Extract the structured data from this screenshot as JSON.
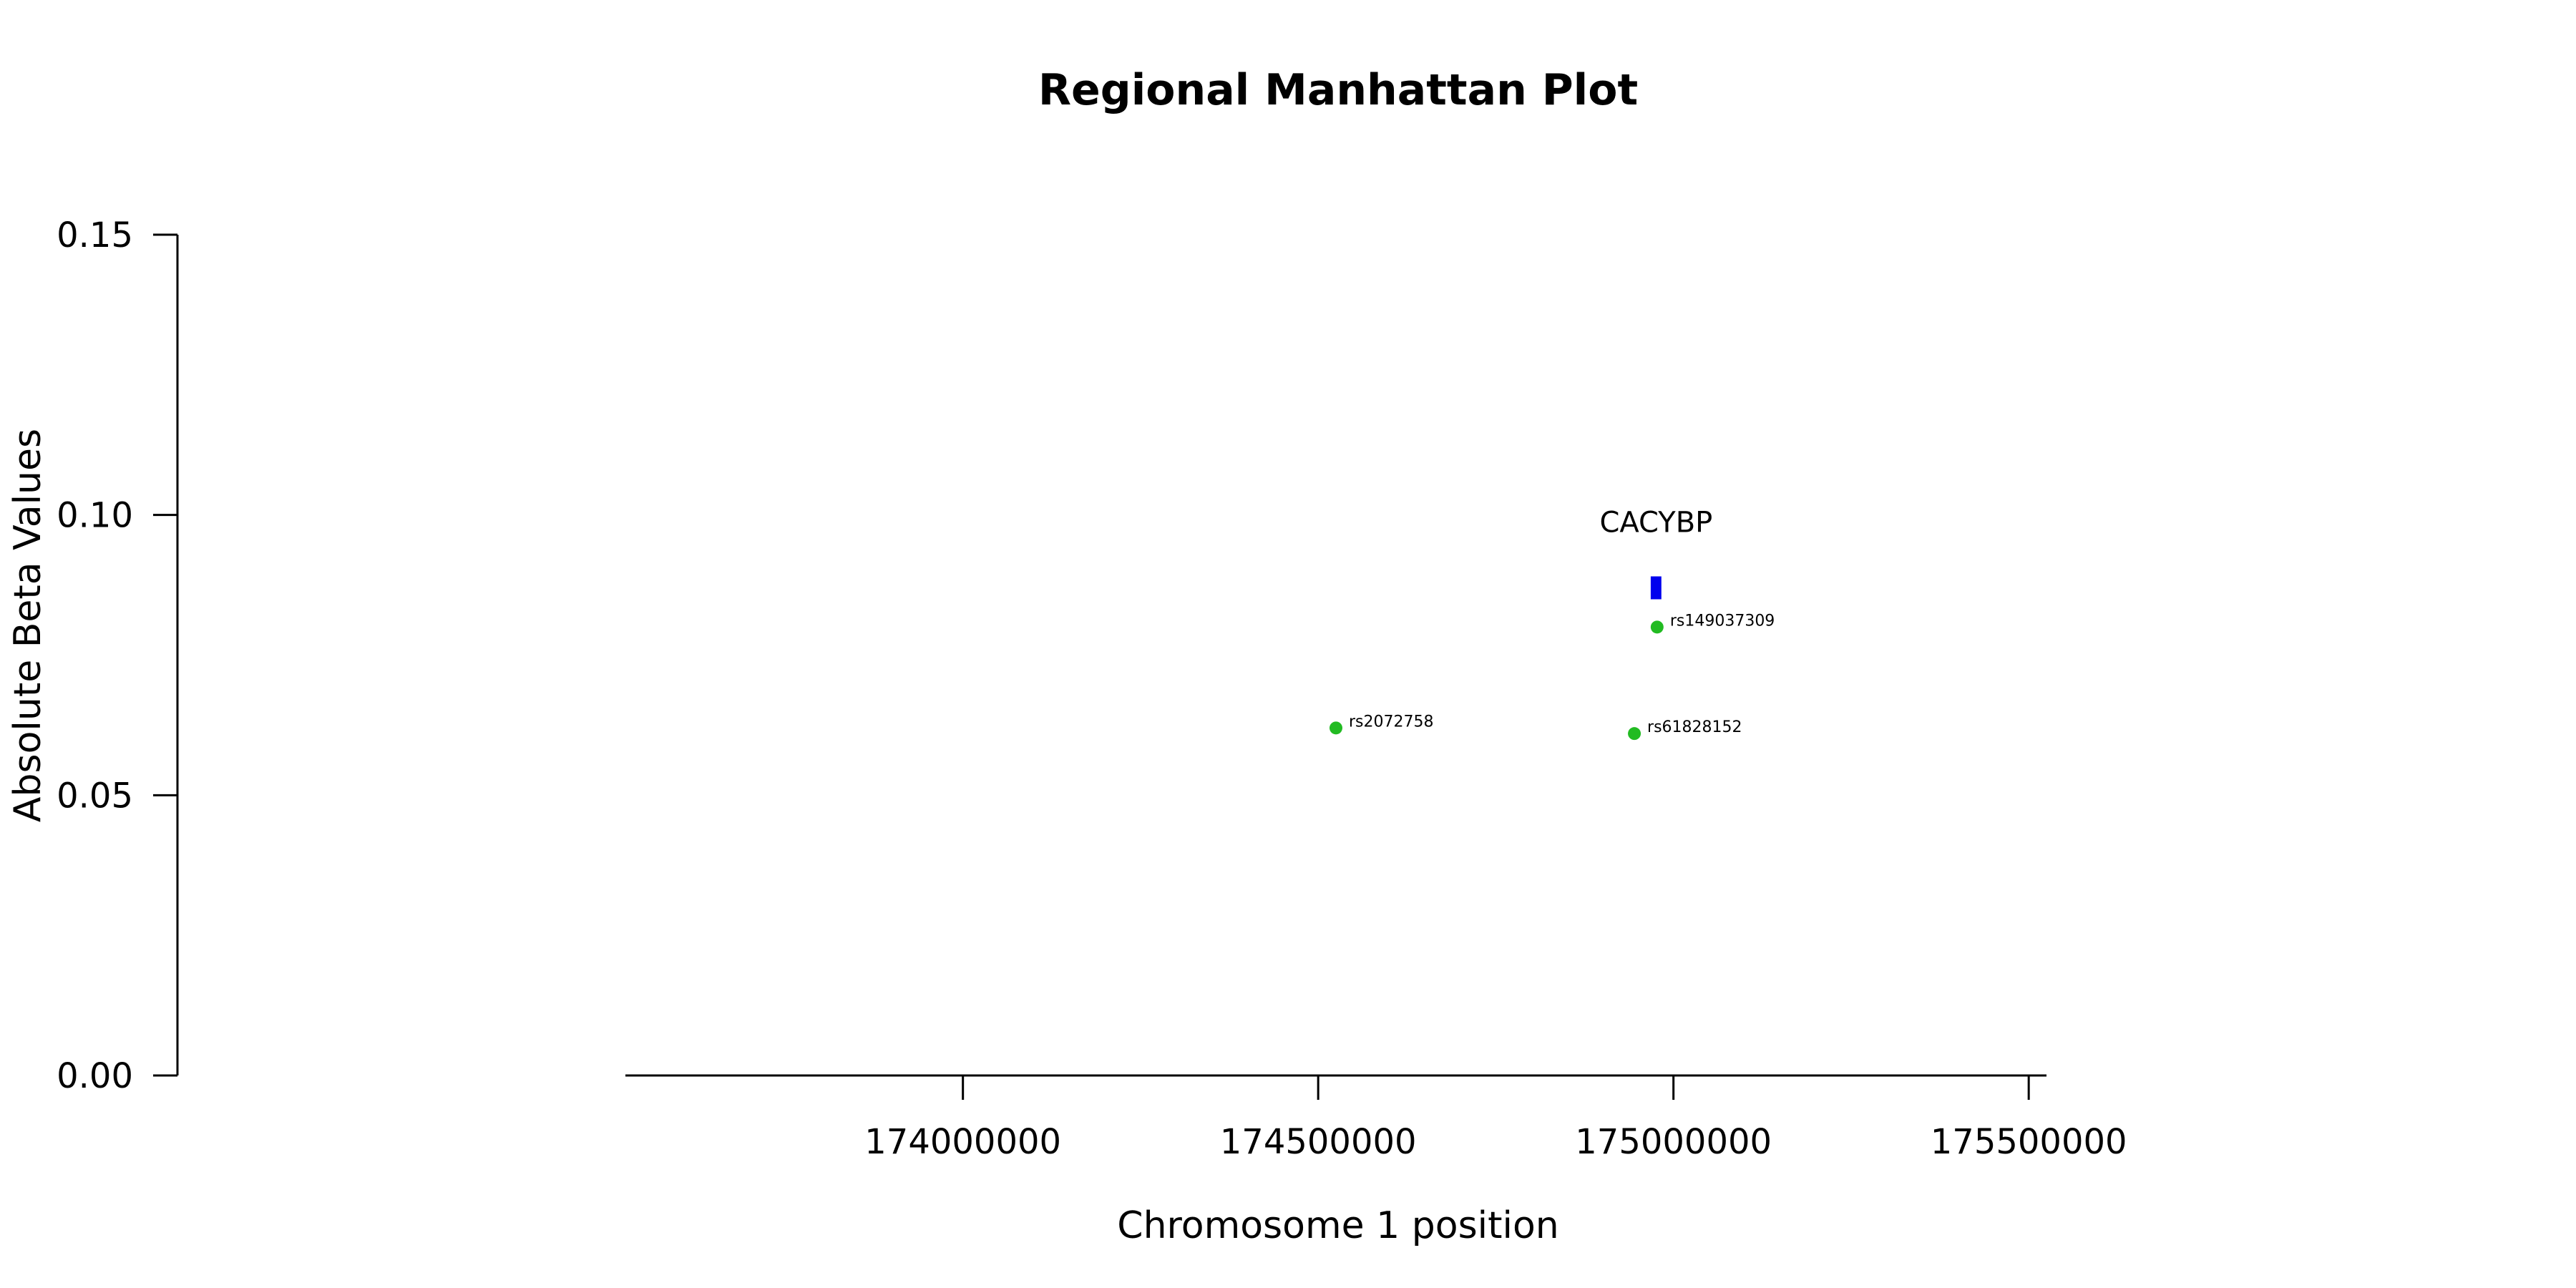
{
  "chart_data": {
    "type": "scatter",
    "title": "Regional Manhattan Plot",
    "xlabel": "Chromosome 1 position",
    "ylabel": "Absolute Beta Values",
    "xlim": [
      173525000,
      175525000
    ],
    "ylim": [
      0,
      0.15
    ],
    "x_ticks": [
      174000000,
      174500000,
      175000000,
      175500000
    ],
    "x_tick_labels": [
      "174000000",
      "174500000",
      "175000000",
      "175500000"
    ],
    "y_ticks": [
      0,
      0.05,
      0.1,
      0.15
    ],
    "y_tick_labels": [
      "0.00",
      "0.05",
      "0.10",
      "0.15"
    ],
    "grid": false,
    "points": [
      {
        "label": "rs2072758",
        "x": 174525000,
        "y": 0.062
      },
      {
        "label": "rs61828152",
        "x": 174945000,
        "y": 0.061
      },
      {
        "label": "rs149037309",
        "x": 174977000,
        "y": 0.08
      }
    ],
    "point_color": "#22bb22",
    "genes": [
      {
        "label": "CACYBP",
        "start": 174968000,
        "end": 174983000,
        "y": 0.087
      }
    ],
    "gene_color": "#0000ee"
  }
}
